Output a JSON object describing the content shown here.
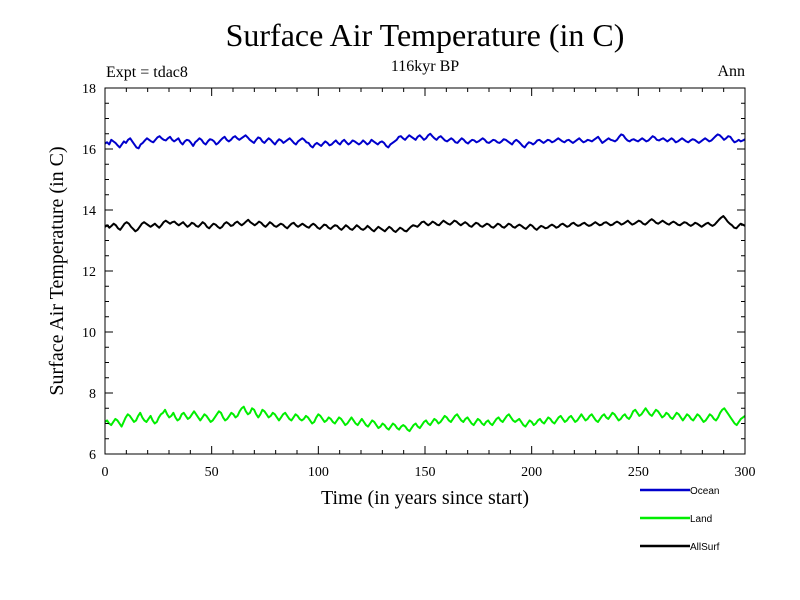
{
  "chart_data": {
    "type": "line",
    "title": "Surface Air Temperature (in C)",
    "subtitle": "116kyr BP",
    "annotation_left": "Expt = tdac8",
    "annotation_right": "Ann",
    "xlabel": "Time (in years since start)",
    "ylabel": "Surface Air Temperature (in C)",
    "xlim": [
      0,
      300
    ],
    "ylim": [
      6,
      18
    ],
    "x_ticks": [
      0,
      50,
      100,
      150,
      200,
      250,
      300
    ],
    "y_ticks": [
      6,
      8,
      10,
      12,
      14,
      16,
      18
    ],
    "x_tick_labels": [
      "0",
      "50",
      "100",
      "150",
      "200",
      "250",
      "300"
    ],
    "y_tick_labels": [
      "6",
      "8",
      "10",
      "12",
      "14",
      "16",
      "18"
    ],
    "legend_position": "bottom-right, below plot",
    "series": [
      {
        "name": "Ocean",
        "color": "#0000cc",
        "values": [
          16.18,
          16.22,
          16.15,
          16.3,
          16.25,
          16.2,
          16.12,
          16.05,
          16.15,
          16.25,
          16.2,
          16.3,
          16.35,
          16.25,
          16.15,
          16.05,
          16.02,
          16.15,
          16.2,
          16.28,
          16.35,
          16.3,
          16.25,
          16.22,
          16.3,
          16.38,
          16.42,
          16.35,
          16.3,
          16.28,
          16.35,
          16.4,
          16.3,
          16.25,
          16.3,
          16.35,
          16.22,
          16.15,
          16.25,
          16.3,
          16.28,
          16.2,
          16.1,
          16.22,
          16.28,
          16.35,
          16.3,
          16.2,
          16.15,
          16.25,
          16.32,
          16.3,
          16.25,
          16.15,
          16.2,
          16.28,
          16.35,
          16.4,
          16.3,
          16.25,
          16.3,
          16.38,
          16.42,
          16.35,
          16.3,
          16.35,
          16.4,
          16.45,
          16.38,
          16.3,
          16.25,
          16.2,
          16.3,
          16.38,
          16.35,
          16.25,
          16.2,
          16.28,
          16.35,
          16.3,
          16.22,
          16.15,
          16.25,
          16.32,
          16.28,
          16.2,
          16.25,
          16.3,
          16.35,
          16.28,
          16.2,
          16.15,
          16.25,
          16.3,
          16.35,
          16.3,
          16.22,
          16.2,
          16.1,
          16.05,
          16.15,
          16.2,
          16.15,
          16.1,
          16.18,
          16.25,
          16.2,
          16.12,
          16.15,
          16.22,
          16.28,
          16.2,
          16.15,
          16.25,
          16.3,
          16.22,
          16.15,
          16.2,
          16.28,
          16.25,
          16.2,
          16.15,
          16.2,
          16.28,
          16.22,
          16.15,
          16.2,
          16.3,
          16.25,
          16.2,
          16.15,
          16.22,
          16.25,
          16.2,
          16.1,
          16.05,
          16.15,
          16.2,
          16.25,
          16.3,
          16.4,
          16.42,
          16.35,
          16.3,
          16.38,
          16.45,
          16.4,
          16.35,
          16.3,
          16.4,
          16.45,
          16.38,
          16.3,
          16.35,
          16.45,
          16.5,
          16.42,
          16.35,
          16.3,
          16.38,
          16.42,
          16.35,
          16.28,
          16.25,
          16.3,
          16.35,
          16.3,
          16.22,
          16.2,
          16.28,
          16.35,
          16.3,
          16.22,
          16.18,
          16.25,
          16.3,
          16.28,
          16.22,
          16.25,
          16.3,
          16.35,
          16.3,
          16.22,
          16.2,
          16.25,
          16.3,
          16.28,
          16.22,
          16.2,
          16.25,
          16.32,
          16.3,
          16.25,
          16.2,
          16.15,
          16.25,
          16.3,
          16.25,
          16.18,
          16.1,
          16.05,
          16.15,
          16.22,
          16.2,
          16.15,
          16.2,
          16.28,
          16.3,
          16.25,
          16.2,
          16.25,
          16.3,
          16.28,
          16.22,
          16.25,
          16.3,
          16.35,
          16.3,
          16.25,
          16.22,
          16.28,
          16.3,
          16.25,
          16.2,
          16.25,
          16.3,
          16.35,
          16.28,
          16.22,
          16.25,
          16.3,
          16.28,
          16.25,
          16.3,
          16.35,
          16.4,
          16.3,
          16.2,
          16.25,
          16.3,
          16.35,
          16.3,
          16.28,
          16.25,
          16.3,
          16.4,
          16.48,
          16.45,
          16.35,
          16.28,
          16.25,
          16.3,
          16.32,
          16.28,
          16.25,
          16.3,
          16.35,
          16.3,
          16.25,
          16.28,
          16.35,
          16.42,
          16.38,
          16.3,
          16.28,
          16.32,
          16.35,
          16.3,
          16.25,
          16.3,
          16.35,
          16.3,
          16.22,
          16.25,
          16.3,
          16.35,
          16.3,
          16.25,
          16.22,
          16.28,
          16.32,
          16.3,
          16.25,
          16.2,
          16.25,
          16.3,
          16.35,
          16.3,
          16.25,
          16.28,
          16.35,
          16.42,
          16.48,
          16.45,
          16.38,
          16.3,
          16.35,
          16.42,
          16.4,
          16.3,
          16.22,
          16.25,
          16.3,
          16.25,
          16.28,
          16.32
        ]
      },
      {
        "name": "Land",
        "color": "#00ee00",
        "values": [
          7.05,
          7.1,
          7.0,
          6.95,
          7.05,
          7.15,
          7.1,
          7.0,
          6.9,
          7.05,
          7.2,
          7.3,
          7.25,
          7.15,
          7.05,
          7.1,
          7.25,
          7.35,
          7.2,
          7.1,
          7.05,
          7.15,
          7.25,
          7.1,
          7.0,
          7.05,
          7.2,
          7.3,
          7.35,
          7.45,
          7.3,
          7.2,
          7.25,
          7.35,
          7.2,
          7.1,
          7.15,
          7.3,
          7.35,
          7.25,
          7.15,
          7.2,
          7.3,
          7.4,
          7.3,
          7.2,
          7.1,
          7.2,
          7.3,
          7.25,
          7.15,
          7.05,
          7.1,
          7.2,
          7.3,
          7.4,
          7.35,
          7.2,
          7.1,
          7.15,
          7.25,
          7.35,
          7.3,
          7.2,
          7.25,
          7.4,
          7.5,
          7.55,
          7.4,
          7.3,
          7.35,
          7.5,
          7.45,
          7.3,
          7.2,
          7.3,
          7.45,
          7.4,
          7.3,
          7.2,
          7.25,
          7.35,
          7.3,
          7.2,
          7.1,
          7.2,
          7.3,
          7.35,
          7.25,
          7.15,
          7.1,
          7.2,
          7.3,
          7.25,
          7.15,
          7.1,
          7.15,
          7.25,
          7.2,
          7.1,
          7.0,
          7.05,
          7.2,
          7.3,
          7.25,
          7.15,
          7.05,
          7.1,
          7.2,
          7.15,
          7.05,
          7.0,
          7.1,
          7.2,
          7.15,
          7.05,
          6.95,
          7.0,
          7.1,
          7.2,
          7.1,
          7.0,
          6.95,
          7.05,
          7.15,
          7.05,
          6.95,
          6.9,
          7.0,
          7.1,
          7.05,
          6.95,
          6.85,
          6.9,
          7.0,
          6.95,
          6.85,
          6.8,
          6.9,
          7.0,
          6.95,
          6.85,
          6.8,
          6.9,
          6.95,
          6.9,
          6.8,
          6.75,
          6.85,
          6.95,
          7.0,
          6.9,
          6.85,
          6.95,
          7.05,
          7.1,
          7.0,
          6.95,
          7.05,
          7.15,
          7.1,
          7.0,
          7.05,
          7.15,
          7.25,
          7.2,
          7.1,
          7.05,
          7.15,
          7.25,
          7.3,
          7.2,
          7.1,
          7.05,
          7.15,
          7.2,
          7.1,
          7.0,
          6.95,
          7.05,
          7.15,
          7.1,
          7.0,
          6.95,
          7.05,
          7.1,
          7.0,
          6.95,
          7.05,
          7.15,
          7.2,
          7.1,
          7.05,
          7.15,
          7.25,
          7.3,
          7.2,
          7.1,
          7.05,
          7.1,
          7.15,
          7.05,
          6.95,
          6.9,
          7.0,
          7.1,
          7.05,
          6.95,
          7.0,
          7.1,
          7.15,
          7.05,
          7.0,
          7.1,
          7.2,
          7.15,
          7.05,
          7.0,
          7.1,
          7.2,
          7.25,
          7.15,
          7.05,
          7.1,
          7.2,
          7.25,
          7.15,
          7.05,
          7.1,
          7.2,
          7.3,
          7.2,
          7.1,
          7.15,
          7.25,
          7.3,
          7.2,
          7.1,
          7.05,
          7.15,
          7.25,
          7.3,
          7.2,
          7.15,
          7.25,
          7.35,
          7.3,
          7.2,
          7.1,
          7.15,
          7.25,
          7.3,
          7.2,
          7.15,
          7.25,
          7.4,
          7.45,
          7.35,
          7.25,
          7.3,
          7.4,
          7.5,
          7.4,
          7.3,
          7.25,
          7.35,
          7.45,
          7.4,
          7.3,
          7.2,
          7.25,
          7.35,
          7.3,
          7.2,
          7.15,
          7.25,
          7.35,
          7.3,
          7.2,
          7.1,
          7.2,
          7.3,
          7.25,
          7.15,
          7.1,
          7.2,
          7.3,
          7.25,
          7.15,
          7.05,
          7.1,
          7.2,
          7.3,
          7.25,
          7.15,
          7.1,
          7.2,
          7.35,
          7.45,
          7.5,
          7.4,
          7.3,
          7.2,
          7.1,
          7.0,
          6.95,
          7.05,
          7.15,
          7.2,
          7.25
        ]
      },
      {
        "name": "AllSurf",
        "color": "#000000",
        "values": [
          13.45,
          13.5,
          13.42,
          13.48,
          13.55,
          13.5,
          13.4,
          13.35,
          13.45,
          13.55,
          13.6,
          13.55,
          13.45,
          13.38,
          13.3,
          13.35,
          13.45,
          13.55,
          13.6,
          13.55,
          13.5,
          13.45,
          13.5,
          13.55,
          13.48,
          13.42,
          13.5,
          13.6,
          13.65,
          13.6,
          13.55,
          13.6,
          13.62,
          13.55,
          13.5,
          13.55,
          13.6,
          13.52,
          13.45,
          13.5,
          13.58,
          13.55,
          13.48,
          13.45,
          13.52,
          13.6,
          13.55,
          13.45,
          13.4,
          13.48,
          13.55,
          13.52,
          13.45,
          13.4,
          13.45,
          13.55,
          13.6,
          13.55,
          13.48,
          13.5,
          13.58,
          13.62,
          13.55,
          13.5,
          13.55,
          13.62,
          13.68,
          13.6,
          13.55,
          13.5,
          13.55,
          13.62,
          13.58,
          13.5,
          13.45,
          13.52,
          13.6,
          13.55,
          13.48,
          13.45,
          13.5,
          13.55,
          13.52,
          13.45,
          13.4,
          13.48,
          13.55,
          13.58,
          13.5,
          13.45,
          13.5,
          13.55,
          13.5,
          13.45,
          13.42,
          13.5,
          13.55,
          13.5,
          13.42,
          13.38,
          13.45,
          13.52,
          13.5,
          13.42,
          13.38,
          13.45,
          13.5,
          13.48,
          13.4,
          13.35,
          13.42,
          13.5,
          13.45,
          13.38,
          13.35,
          13.42,
          13.5,
          13.45,
          13.38,
          13.35,
          13.4,
          13.48,
          13.42,
          13.35,
          13.3,
          13.38,
          13.45,
          13.4,
          13.35,
          13.3,
          13.38,
          13.45,
          13.4,
          13.32,
          13.28,
          13.35,
          13.42,
          13.38,
          13.32,
          13.3,
          13.38,
          13.45,
          13.5,
          13.48,
          13.45,
          13.52,
          13.6,
          13.62,
          13.55,
          13.5,
          13.55,
          13.62,
          13.58,
          13.52,
          13.5,
          13.58,
          13.65,
          13.6,
          13.55,
          13.52,
          13.58,
          13.65,
          13.62,
          13.55,
          13.5,
          13.55,
          13.6,
          13.55,
          13.48,
          13.45,
          13.52,
          13.58,
          13.55,
          13.48,
          13.45,
          13.5,
          13.55,
          13.52,
          13.45,
          13.42,
          13.48,
          13.55,
          13.52,
          13.45,
          13.42,
          13.48,
          13.55,
          13.52,
          13.45,
          13.42,
          13.48,
          13.52,
          13.48,
          13.42,
          13.38,
          13.45,
          13.52,
          13.48,
          13.4,
          13.35,
          13.42,
          13.48,
          13.45,
          13.4,
          13.42,
          13.48,
          13.52,
          13.48,
          13.42,
          13.45,
          13.52,
          13.55,
          13.5,
          13.45,
          13.48,
          13.55,
          13.58,
          13.52,
          13.48,
          13.5,
          13.55,
          13.58,
          13.52,
          13.48,
          13.5,
          13.55,
          13.6,
          13.55,
          13.5,
          13.52,
          13.58,
          13.6,
          13.55,
          13.5,
          13.52,
          13.58,
          13.62,
          13.58,
          13.52,
          13.55,
          13.6,
          13.65,
          13.58,
          13.52,
          13.55,
          13.6,
          13.65,
          13.62,
          13.55,
          13.52,
          13.58,
          13.65,
          13.7,
          13.65,
          13.58,
          13.55,
          13.6,
          13.65,
          13.6,
          13.55,
          13.52,
          13.58,
          13.62,
          13.58,
          13.52,
          13.5,
          13.55,
          13.6,
          13.58,
          13.52,
          13.48,
          13.52,
          13.58,
          13.55,
          13.5,
          13.45,
          13.5,
          13.55,
          13.58,
          13.52,
          13.48,
          13.52,
          13.6,
          13.68,
          13.75,
          13.8,
          13.72,
          13.62,
          13.55,
          13.5,
          13.42,
          13.4,
          13.48,
          13.55,
          13.52,
          13.48
        ]
      }
    ]
  }
}
